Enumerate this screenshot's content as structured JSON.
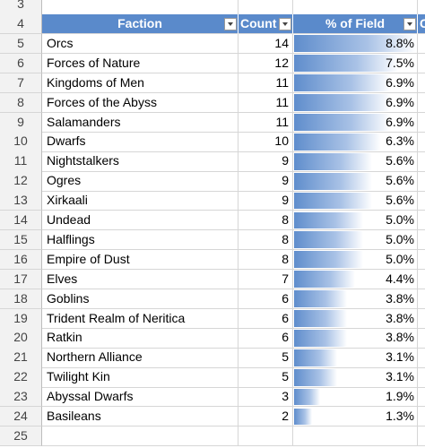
{
  "header_row": {
    "row": 4,
    "columns": [
      "Faction",
      "Count",
      "% of Field",
      "C"
    ]
  },
  "top_row": 3,
  "bottom_row": 25,
  "rows": [
    {
      "row": 5,
      "faction": "Orcs",
      "count": 14,
      "pct": 8.8,
      "pct_label": "8.8%"
    },
    {
      "row": 6,
      "faction": "Forces of Nature",
      "count": 12,
      "pct": 7.5,
      "pct_label": "7.5%"
    },
    {
      "row": 7,
      "faction": "Kingdoms of Men",
      "count": 11,
      "pct": 6.9,
      "pct_label": "6.9%"
    },
    {
      "row": 8,
      "faction": "Forces of the Abyss",
      "count": 11,
      "pct": 6.9,
      "pct_label": "6.9%"
    },
    {
      "row": 9,
      "faction": "Salamanders",
      "count": 11,
      "pct": 6.9,
      "pct_label": "6.9%"
    },
    {
      "row": 10,
      "faction": "Dwarfs",
      "count": 10,
      "pct": 6.3,
      "pct_label": "6.3%"
    },
    {
      "row": 11,
      "faction": "Nightstalkers",
      "count": 9,
      "pct": 5.6,
      "pct_label": "5.6%"
    },
    {
      "row": 12,
      "faction": "Ogres",
      "count": 9,
      "pct": 5.6,
      "pct_label": "5.6%"
    },
    {
      "row": 13,
      "faction": "Xirkaali",
      "count": 9,
      "pct": 5.6,
      "pct_label": "5.6%"
    },
    {
      "row": 14,
      "faction": "Undead",
      "count": 8,
      "pct": 5.0,
      "pct_label": "5.0%"
    },
    {
      "row": 15,
      "faction": "Halflings",
      "count": 8,
      "pct": 5.0,
      "pct_label": "5.0%"
    },
    {
      "row": 16,
      "faction": "Empire of Dust",
      "count": 8,
      "pct": 5.0,
      "pct_label": "5.0%"
    },
    {
      "row": 17,
      "faction": "Elves",
      "count": 7,
      "pct": 4.4,
      "pct_label": "4.4%"
    },
    {
      "row": 18,
      "faction": "Goblins",
      "count": 6,
      "pct": 3.8,
      "pct_label": "3.8%"
    },
    {
      "row": 19,
      "faction": "Trident Realm of Neritica",
      "count": 6,
      "pct": 3.8,
      "pct_label": "3.8%"
    },
    {
      "row": 20,
      "faction": "Ratkin",
      "count": 6,
      "pct": 3.8,
      "pct_label": "3.8%"
    },
    {
      "row": 21,
      "faction": "Northern Alliance",
      "count": 5,
      "pct": 3.1,
      "pct_label": "3.1%"
    },
    {
      "row": 22,
      "faction": "Twilight Kin",
      "count": 5,
      "pct": 3.1,
      "pct_label": "3.1%"
    },
    {
      "row": 23,
      "faction": "Abyssal Dwarfs",
      "count": 3,
      "pct": 1.9,
      "pct_label": "1.9%"
    },
    {
      "row": 24,
      "faction": "Basileans",
      "count": 2,
      "pct": 1.3,
      "pct_label": "1.3%"
    }
  ]
}
